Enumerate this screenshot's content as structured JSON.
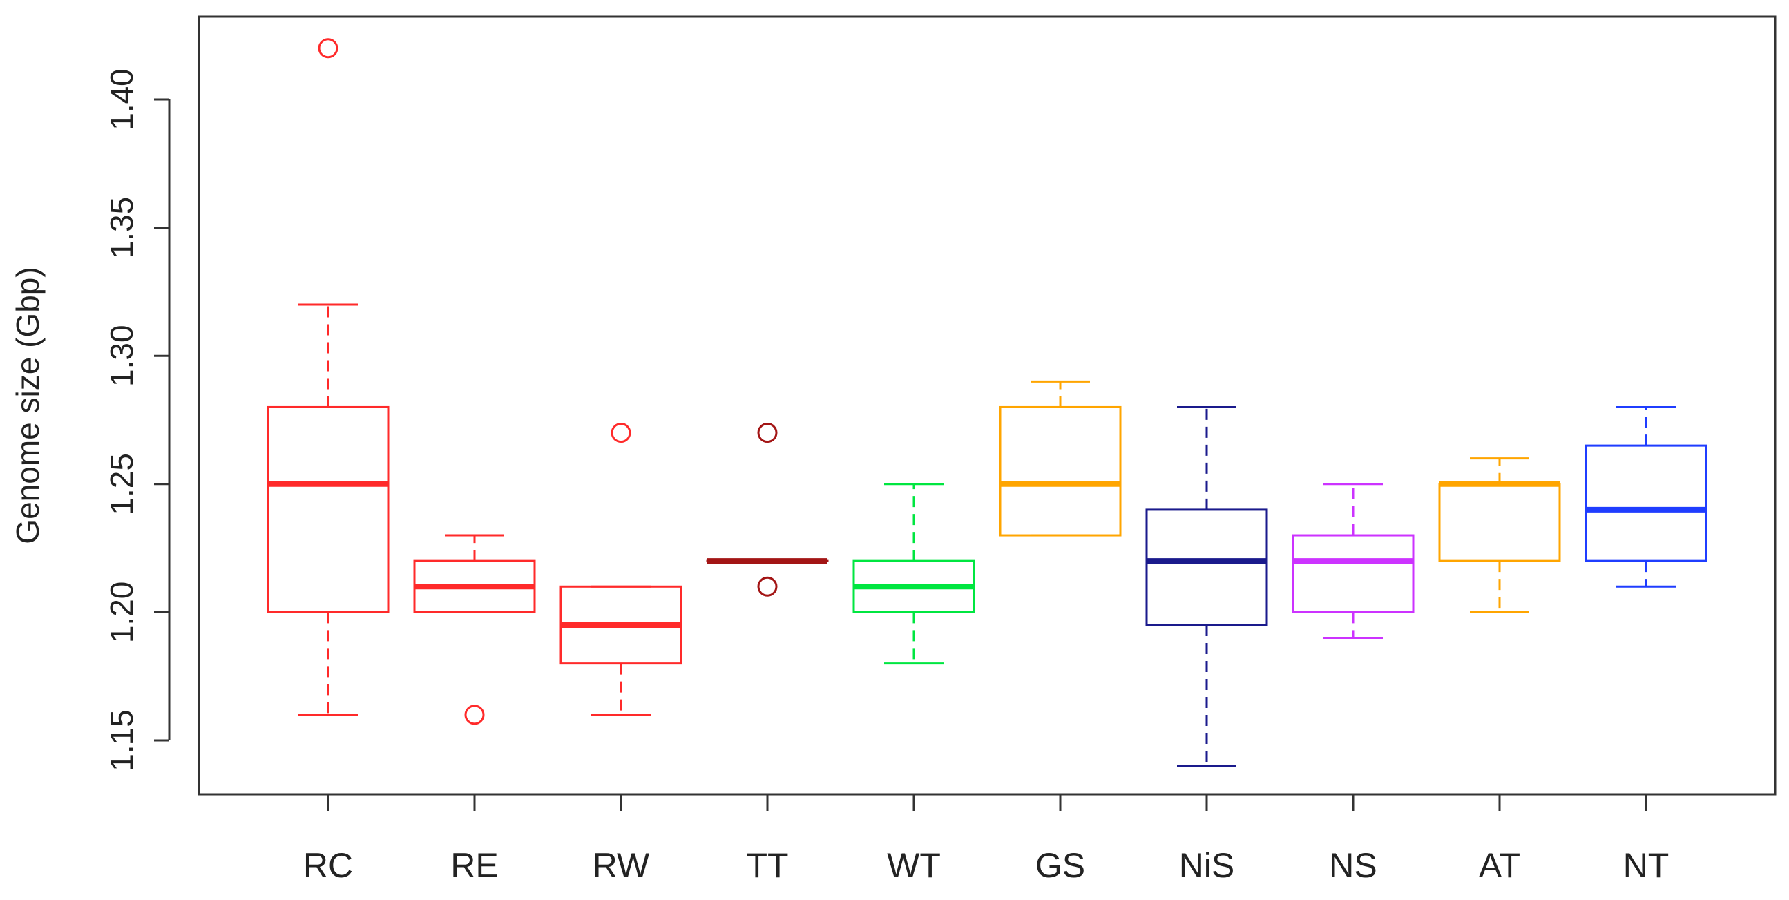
{
  "chart_data": {
    "type": "boxplot",
    "title": "",
    "xlabel": "",
    "ylabel": "Genome size (Gbp)",
    "ylim": [
      1.13,
      1.435
    ],
    "yticks": [
      "1.15",
      "1.20",
      "1.25",
      "1.30",
      "1.35",
      "1.40"
    ],
    "ytick_values": [
      1.15,
      1.2,
      1.25,
      1.3,
      1.35,
      1.4
    ],
    "grid": false,
    "legend": "none",
    "categories": [
      "RC",
      "RE",
      "RW",
      "TT",
      "WT",
      "GS",
      "NiS",
      "NS",
      "AT",
      "NT"
    ],
    "boxes": [
      {
        "label": "RC",
        "color": "#ff2a2a",
        "min": 1.16,
        "q1": 1.2,
        "median": 1.25,
        "q3": 1.28,
        "max": 1.32,
        "outliers": [
          1.42
        ]
      },
      {
        "label": "RE",
        "color": "#ff2a2a",
        "min": 1.2,
        "q1": 1.2,
        "median": 1.21,
        "q3": 1.22,
        "max": 1.23,
        "outliers": [
          1.16
        ]
      },
      {
        "label": "RW",
        "color": "#ff2a2a",
        "min": 1.16,
        "q1": 1.18,
        "median": 1.195,
        "q3": 1.21,
        "max": 1.21,
        "outliers": [
          1.27
        ]
      },
      {
        "label": "TT",
        "color": "#a31515",
        "min": 1.22,
        "q1": 1.22,
        "median": 1.22,
        "q3": 1.22,
        "max": 1.22,
        "outliers": [
          1.27,
          1.21
        ]
      },
      {
        "label": "WT",
        "color": "#00e640",
        "min": 1.18,
        "q1": 1.2,
        "median": 1.21,
        "q3": 1.22,
        "max": 1.25,
        "outliers": []
      },
      {
        "label": "GS",
        "color": "#ffa500",
        "min": 1.23,
        "q1": 1.23,
        "median": 1.25,
        "q3": 1.28,
        "max": 1.29,
        "outliers": []
      },
      {
        "label": "NiS",
        "color": "#1a1a8c",
        "min": 1.14,
        "q1": 1.195,
        "median": 1.22,
        "q3": 1.24,
        "max": 1.28,
        "outliers": []
      },
      {
        "label": "NS",
        "color": "#cc33ff",
        "min": 1.19,
        "q1": 1.2,
        "median": 1.22,
        "q3": 1.23,
        "max": 1.25,
        "outliers": []
      },
      {
        "label": "AT",
        "color": "#ffa500",
        "min": 1.2,
        "q1": 1.22,
        "median": 1.25,
        "q3": 1.25,
        "max": 1.26,
        "outliers": []
      },
      {
        "label": "NT",
        "color": "#1f3dff",
        "min": 1.21,
        "q1": 1.22,
        "median": 1.24,
        "q3": 1.265,
        "max": 1.28,
        "outliers": []
      }
    ]
  }
}
